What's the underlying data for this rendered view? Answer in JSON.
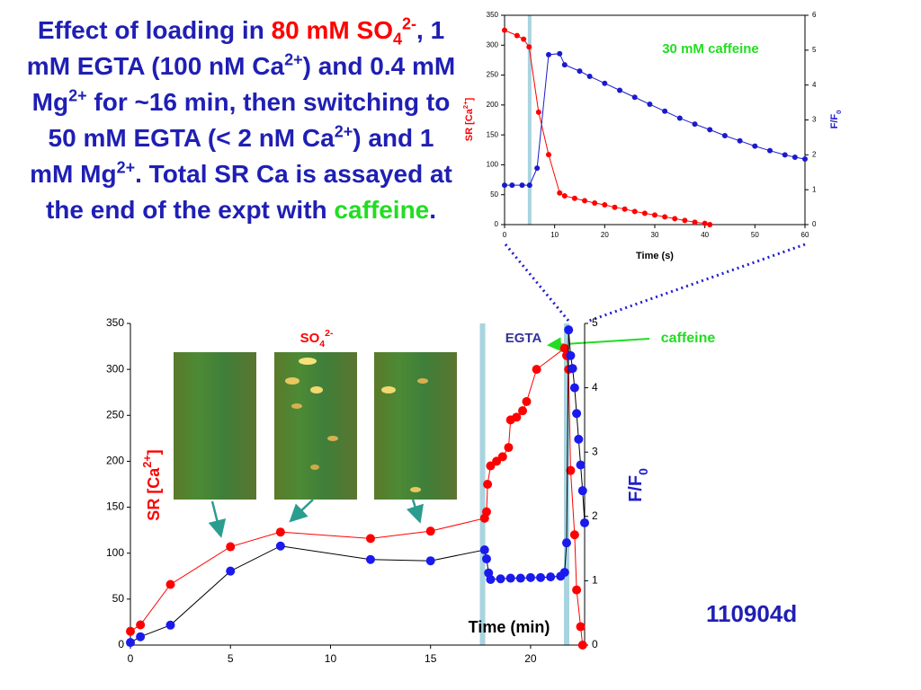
{
  "slide": {
    "title_parts": [
      "Effect of loading in ",
      "80 mM",
      "SO",
      "4",
      "2-",
      ", 1 mM EGTA (100 nM Ca",
      "2+",
      ") and 0.4 mM Mg",
      "2+",
      " for ~16 min, then switching to 50 mM EGTA (< 2 nM Ca",
      "2+",
      ") and 1 mM Mg",
      "2+",
      ".  Total SR Ca is assayed at the end of the expt with ",
      "caffeine",
      "."
    ],
    "id_label": "110904d"
  },
  "chart_data": [
    {
      "type": "line",
      "xlabel": "Time (s)",
      "ylabel": [
        "SR [Ca",
        "2+",
        "]"
      ],
      "y2label": [
        "F/F",
        "0"
      ],
      "xlim": [
        0,
        60
      ],
      "xticks": [
        0,
        10,
        20,
        30,
        40,
        50,
        60
      ],
      "ylim": [
        0,
        350
      ],
      "yticks": [
        0,
        50,
        100,
        150,
        200,
        250,
        300,
        350
      ],
      "y2lim": [
        0,
        6
      ],
      "y2ticks": [
        0,
        1,
        2,
        3,
        4,
        5,
        6
      ],
      "bands": [
        5
      ],
      "band_color": "#a8d4e0",
      "annotations": [
        [
          "30 mM caffeine"
        ]
      ],
      "series": [
        {
          "color": "#ff0000",
          "x": [
            0,
            2.5,
            3.8,
            4.9,
            6.8,
            8.8,
            11,
            12,
            14,
            16,
            18,
            20,
            22,
            24,
            26,
            28,
            30,
            32,
            34,
            36,
            38,
            40,
            41
          ],
          "values": [
            325,
            316,
            310,
            297,
            188,
            117,
            53,
            48,
            44,
            40,
            36,
            33,
            29,
            26,
            22,
            19,
            16,
            13,
            10,
            7,
            4,
            2,
            0
          ]
        },
        {
          "color": "#1a1acc",
          "axis": "y2",
          "x": [
            0,
            1.5,
            3.5,
            5,
            6.5,
            8.8,
            11,
            12,
            15,
            17,
            20,
            23,
            26,
            29,
            32,
            35,
            38,
            41,
            44,
            47,
            50,
            53,
            56,
            58,
            60
          ],
          "values": [
            1.13,
            1.13,
            1.13,
            1.13,
            1.62,
            4.87,
            4.9,
            4.58,
            4.4,
            4.25,
            4.05,
            3.85,
            3.65,
            3.45,
            3.25,
            3.05,
            2.88,
            2.72,
            2.55,
            2.4,
            2.25,
            2.12,
            2,
            1.93,
            1.88
          ]
        }
      ]
    },
    {
      "type": "line",
      "xlabel": "Time (min)",
      "ylabel": [
        "SR [Ca",
        "2+",
        "]"
      ],
      "y2label": [
        "F/F",
        "0"
      ],
      "xlim": [
        0,
        22.7
      ],
      "xticks": [
        0,
        5,
        10,
        15,
        20
      ],
      "ylim": [
        0,
        350
      ],
      "yticks": [
        0,
        50,
        100,
        150,
        200,
        250,
        300,
        350
      ],
      "y2lim": [
        0,
        5
      ],
      "y2ticks": [
        0,
        1,
        2,
        3,
        4,
        5
      ],
      "bands": [
        17.6,
        21.8
      ],
      "band_color": "#a8d4e0",
      "annotations": [
        [
          "SO",
          "4",
          "2-"
        ],
        [
          "EGTA"
        ],
        [
          "caffeine"
        ]
      ],
      "series": [
        {
          "color": "#ff0000",
          "x": [
            0,
            0.5,
            2,
            5,
            7.5,
            12,
            15,
            17.7,
            17.8,
            17.85,
            18,
            18.3,
            18.6,
            18.9,
            19,
            19.3,
            19.6,
            19.8,
            20.3,
            21.7,
            21.8,
            21.9,
            22,
            22.2,
            22.3,
            22.5,
            22.6
          ],
          "values": [
            15,
            22,
            66,
            107,
            123,
            116,
            124,
            138,
            145,
            175,
            195,
            200,
            205,
            215,
            245,
            248,
            255,
            265,
            300,
            323,
            315,
            300,
            190,
            120,
            60,
            20,
            0
          ]
        },
        {
          "color": "#1a1aee",
          "line_color": "#000000",
          "axis": "y2",
          "x": [
            0,
            0.5,
            2,
            5,
            7.5,
            12,
            15,
            17.7,
            17.8,
            17.9,
            18,
            18.5,
            19,
            19.5,
            20,
            20.5,
            21,
            21.5,
            21.7,
            21.8,
            21.9,
            22,
            22.1,
            22.2,
            22.3,
            22.4,
            22.5,
            22.6,
            22.7
          ],
          "values": [
            0.04,
            0.13,
            0.31,
            1.15,
            1.54,
            1.33,
            1.31,
            1.48,
            1.34,
            1.12,
            1.02,
            1.03,
            1.04,
            1.04,
            1.05,
            1.05,
            1.06,
            1.07,
            1.13,
            1.59,
            4.9,
            4.5,
            4.3,
            4,
            3.6,
            3.2,
            2.8,
            2.4,
            1.9
          ]
        }
      ]
    }
  ]
}
